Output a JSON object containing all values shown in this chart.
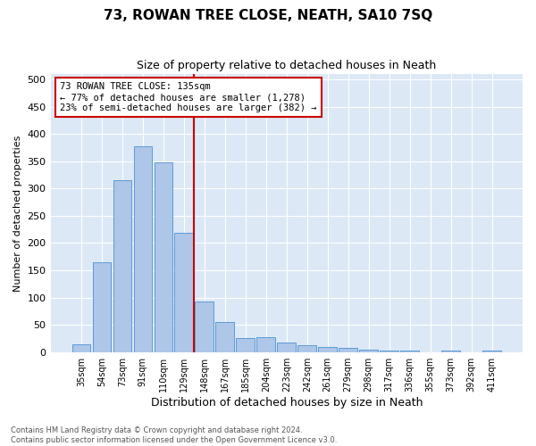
{
  "title": "73, ROWAN TREE CLOSE, NEATH, SA10 7SQ",
  "subtitle": "Size of property relative to detached houses in Neath",
  "xlabel": "Distribution of detached houses by size in Neath",
  "ylabel": "Number of detached properties",
  "categories": [
    "35sqm",
    "54sqm",
    "73sqm",
    "91sqm",
    "110sqm",
    "129sqm",
    "148sqm",
    "167sqm",
    "185sqm",
    "204sqm",
    "223sqm",
    "242sqm",
    "261sqm",
    "279sqm",
    "298sqm",
    "317sqm",
    "336sqm",
    "355sqm",
    "373sqm",
    "392sqm",
    "411sqm"
  ],
  "values": [
    15,
    165,
    315,
    378,
    348,
    218,
    93,
    55,
    26,
    28,
    17,
    12,
    10,
    7,
    5,
    3,
    3,
    0,
    2,
    0,
    3
  ],
  "bar_color": "#aec6e8",
  "bar_edge_color": "#5b9bd5",
  "vline_x_index": 5.5,
  "vline_color": "#cc0000",
  "annotation_title": "73 ROWAN TREE CLOSE: 135sqm",
  "annotation_line1": "← 77% of detached houses are smaller (1,278)",
  "annotation_line2": "23% of semi-detached houses are larger (382) →",
  "annotation_box_color": "#cc0000",
  "ylim": [
    0,
    510
  ],
  "yticks": [
    0,
    50,
    100,
    150,
    200,
    250,
    300,
    350,
    400,
    450,
    500
  ],
  "footer_line1": "Contains HM Land Registry data © Crown copyright and database right 2024.",
  "footer_line2": "Contains public sector information licensed under the Open Government Licence v3.0.",
  "bg_color": "#ffffff",
  "plot_bg_color": "#dce8f5"
}
